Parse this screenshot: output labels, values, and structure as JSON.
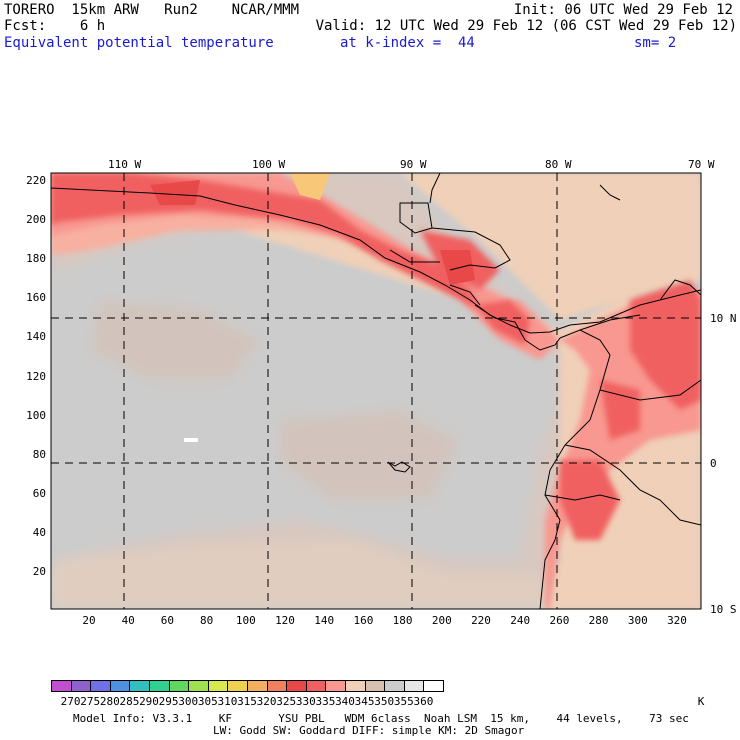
{
  "header": {
    "model_name": "TORERO  15km ARW   Run2    NCAR/MMM",
    "init": "Init: 06 UTC Wed 29 Feb 12",
    "fcst": "Fcst:    6 h",
    "valid": "Valid: 12 UTC Wed 29 Feb 12 (06 CST Wed 29 Feb 12)",
    "field": "Equivalent potential temperature",
    "level": "at k-index =  44",
    "smoothing": "sm= 2"
  },
  "map": {
    "top_lon_labels": [
      "110 W",
      "100 W",
      "90 W",
      "80 W",
      "70 W"
    ],
    "right_lat_labels": [
      "10 N",
      "0",
      "10 S"
    ],
    "y_ticks": [
      "220",
      "200",
      "180",
      "160",
      "140",
      "120",
      "100",
      "80",
      "60",
      "40",
      "20"
    ],
    "x_ticks": [
      "20",
      "40",
      "60",
      "80",
      "100",
      "120",
      "140",
      "160",
      "180",
      "200",
      "220",
      "240",
      "260",
      "280",
      "300",
      "320"
    ]
  },
  "colorbar": {
    "unit": "K",
    "labels": [
      "270",
      "275",
      "280",
      "285",
      "290",
      "295",
      "300",
      "305",
      "310",
      "315",
      "320",
      "325",
      "330",
      "335",
      "340",
      "345",
      "350",
      "355",
      "360"
    ],
    "colors": [
      "#c050d0",
      "#9060d0",
      "#7070e8",
      "#5090e0",
      "#30c0c0",
      "#30d090",
      "#60d860",
      "#a0e050",
      "#d8e850",
      "#f0d050",
      "#f0b060",
      "#f08060",
      "#e84848",
      "#f06060",
      "#f89890",
      "#f0d0b8",
      "#d8c0b0",
      "#cccccc",
      "#e6e6e6",
      "#ffffff"
    ]
  },
  "footer": {
    "line1": "Model Info: V3.3.1    KF       YSU PBL   WDM 6class  Noah LSM  15 km,    44 levels,    73 sec",
    "line2": "LW: Godd SW: Goddard DIFF: simple KM: 2D Smagor"
  }
}
